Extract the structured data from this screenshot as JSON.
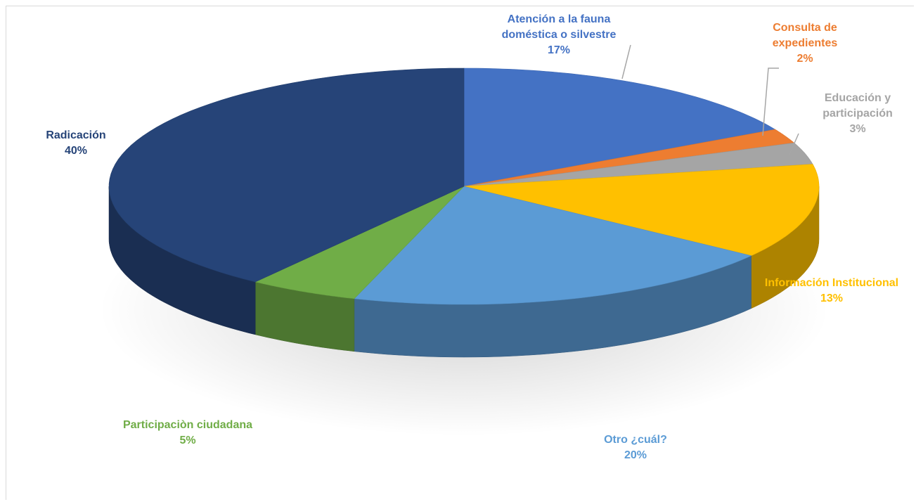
{
  "chart_data": {
    "type": "pie",
    "title": "",
    "slices": [
      {
        "label": "Atención a la fauna doméstica o silvestre",
        "label_lines": [
          "Atención a la fauna",
          "doméstica o silvestre",
          "17%"
        ],
        "value": 17,
        "percent_label": "17%",
        "color": "#4472C4"
      },
      {
        "label": "Consulta de expedientes",
        "label_lines": [
          "Consulta de",
          "expedientes",
          "2%"
        ],
        "value": 2,
        "percent_label": "2%",
        "color": "#ED7D31"
      },
      {
        "label": "Educación y participación",
        "label_lines": [
          "Educación y",
          "participación",
          "3%"
        ],
        "value": 3,
        "percent_label": "3%",
        "color": "#A5A5A5"
      },
      {
        "label": "Información Institucional",
        "label_lines": [
          "Información Institucional",
          "13%"
        ],
        "value": 13,
        "percent_label": "13%",
        "color": "#FFC000"
      },
      {
        "label": "Otro ¿cuál?",
        "label_lines": [
          "Otro ¿cuál?",
          "20%"
        ],
        "value": 20,
        "percent_label": "20%",
        "color": "#5B9BD5"
      },
      {
        "label": "Participaciòn ciudadana",
        "label_lines": [
          "Participaciòn ciudadana",
          "5%"
        ],
        "value": 5,
        "percent_label": "5%",
        "color": "#70AD47"
      },
      {
        "label": "Radicación",
        "label_lines": [
          "Radicación",
          "40%"
        ],
        "value": 40,
        "percent_label": "40%",
        "color": "#264478"
      }
    ],
    "legend": "none",
    "style": "3d-pie"
  }
}
